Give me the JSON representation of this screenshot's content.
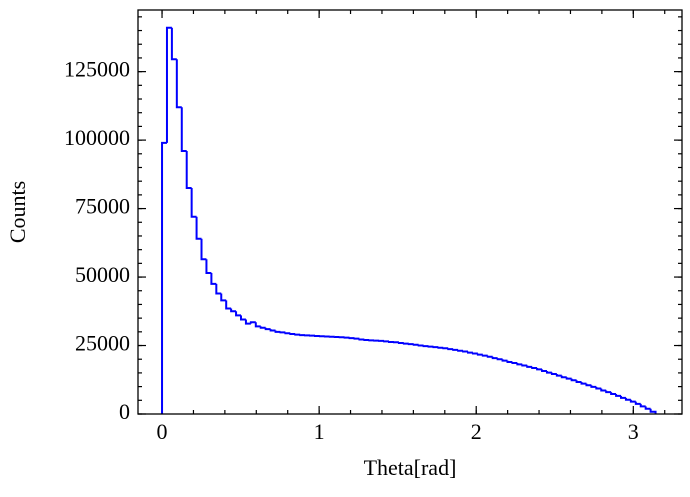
{
  "chart_data": {
    "type": "histogram",
    "xlabel": "Theta[rad]",
    "ylabel": "Counts",
    "color": "#0000ff",
    "bins": [
      0,
      0.0314,
      0.0628,
      0.0942,
      0.1257,
      0.1571,
      0.1885,
      0.2199,
      0.2513,
      0.2827,
      0.3142,
      0.3456,
      0.377,
      0.4084,
      0.4398,
      0.4712,
      0.5027,
      0.5341,
      0.5655,
      0.5969,
      0.6283,
      0.6597,
      0.6912,
      0.7226,
      0.754,
      0.7854,
      0.8168,
      0.8482,
      0.8796,
      0.9111,
      0.9425,
      0.9739,
      1.0053,
      1.0367,
      1.0681,
      1.0996,
      1.131,
      1.1624,
      1.1938,
      1.2252,
      1.2566,
      1.2881,
      1.3195,
      1.3509,
      1.3823,
      1.4137,
      1.4451,
      1.4765,
      1.508,
      1.5394,
      1.5708,
      1.6022,
      1.6336,
      1.665,
      1.6965,
      1.7279,
      1.7593,
      1.7907,
      1.8221,
      1.8535,
      1.885,
      1.9164,
      1.9478,
      1.9792,
      2.0106,
      2.042,
      2.0735,
      2.1049,
      2.1363,
      2.1677,
      2.1991,
      2.2305,
      2.2619,
      2.2934,
      2.3248,
      2.3562,
      2.3876,
      2.419,
      2.4504,
      2.4819,
      2.5133,
      2.5447,
      2.5761,
      2.6075,
      2.6389,
      2.6704,
      2.7018,
      2.7332,
      2.7646,
      2.796,
      2.8274,
      2.8588,
      2.8903,
      2.9217,
      2.9531,
      2.9845,
      3.0159,
      3.0473,
      3.0788,
      3.1102,
      3.1416
    ],
    "values": [
      99000,
      141000,
      129500,
      112000,
      96000,
      82500,
      72000,
      64000,
      56500,
      51500,
      47500,
      44000,
      41500,
      38500,
      37500,
      36000,
      34500,
      33000,
      33500,
      32000,
      31500,
      31000,
      30500,
      30000,
      29800,
      29500,
      29200,
      29000,
      28800,
      28700,
      28600,
      28500,
      28400,
      28300,
      28200,
      28100,
      28000,
      27900,
      27700,
      27500,
      27200,
      27000,
      26900,
      26800,
      26700,
      26500,
      26300,
      26200,
      25900,
      25700,
      25500,
      25300,
      25000,
      24800,
      24600,
      24400,
      24200,
      24000,
      23700,
      23400,
      23100,
      22800,
      22400,
      22100,
      21700,
      21300,
      20900,
      20400,
      20000,
      19500,
      19000,
      18600,
      18100,
      17700,
      17200,
      16800,
      16300,
      15700,
      15100,
      14600,
      14000,
      13400,
      12900,
      12300,
      11700,
      11100,
      10500,
      9900,
      9300,
      8600,
      8000,
      7300,
      6600,
      5900,
      5200,
      4500,
      3700,
      2800,
      1900,
      800
    ],
    "xlim": [
      -0.153,
      3.31
    ],
    "ylim": [
      0,
      147500
    ],
    "xticks": [
      0,
      1,
      2,
      3
    ],
    "yticks": [
      0,
      25000,
      50000,
      75000,
      100000,
      125000
    ]
  }
}
